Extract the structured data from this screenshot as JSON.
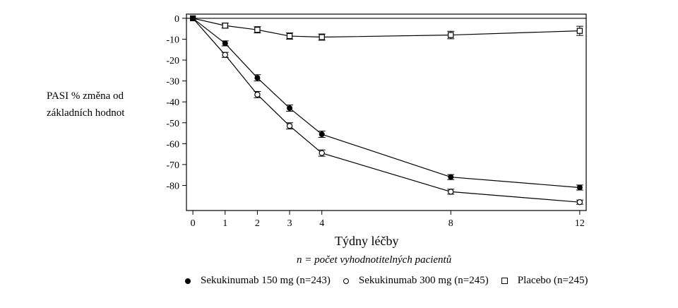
{
  "chart_data": {
    "type": "line",
    "xlabel": "Týdny léčby",
    "x_note": "n = počet vyhodnotitelných pacientů",
    "ylabel": "PASI % změna od základních hodnot",
    "x_ticks": [
      0,
      1,
      2,
      3,
      4,
      8,
      12
    ],
    "y_ticks": [
      0,
      -10,
      -20,
      -30,
      -40,
      -50,
      -60,
      -70,
      -80
    ],
    "y_tick_labels": [
      "0",
      "-10",
      "-20",
      "-30",
      "-40",
      "-50",
      "-60",
      "-70",
      "-80"
    ],
    "xlim": [
      -0.2,
      12.2
    ],
    "ylim": [
      -92,
      2
    ],
    "reference_line": 0,
    "legend_position": "bottom",
    "series": [
      {
        "name": "Sekukinumab 150 mg (n=243)",
        "marker": "filled-circle",
        "x": [
          0,
          1,
          2,
          3,
          4,
          8,
          12
        ],
        "y": [
          0,
          -12,
          -28.5,
          -43,
          -55.5,
          -76,
          -81
        ],
        "err": [
          0,
          1.2,
          1.5,
          1.5,
          1.5,
          1.2,
          1.2
        ]
      },
      {
        "name": "Sekukinumab 300 mg (n=245)",
        "marker": "open-circle",
        "x": [
          0,
          1,
          2,
          3,
          4,
          8,
          12
        ],
        "y": [
          0,
          -17.5,
          -36.5,
          -51.5,
          -64.5,
          -83,
          -88
        ],
        "err": [
          0,
          1.2,
          1.5,
          1.5,
          1.5,
          1.2,
          1.0
        ]
      },
      {
        "name": "Placebo (n=245)",
        "marker": "open-square",
        "x": [
          0,
          1,
          2,
          3,
          4,
          8,
          12
        ],
        "y": [
          0,
          -3.5,
          -5.5,
          -8.5,
          -9,
          -8,
          -6
        ],
        "err": [
          0,
          1.2,
          1.5,
          1.5,
          1.5,
          1.8,
          2.2
        ]
      }
    ]
  }
}
